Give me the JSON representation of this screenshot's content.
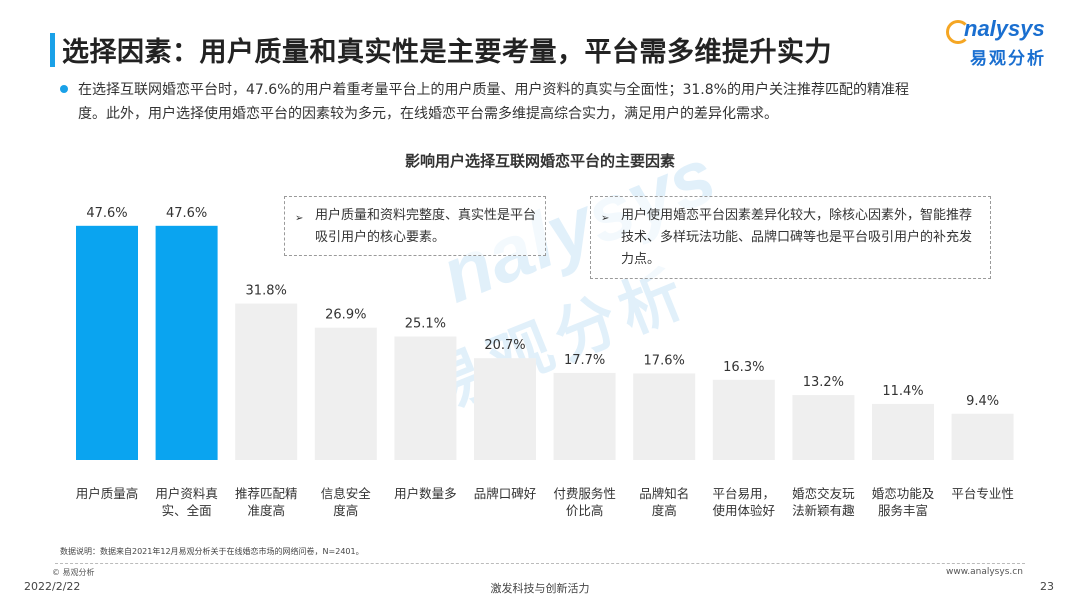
{
  "header": {
    "title": "选择因素：用户质量和真实性是主要考量，平台需多维提升实力",
    "logo_en": "nalysys",
    "logo_cn": "易观分析"
  },
  "summary": {
    "line1": "在选择互联网婚恋平台时，47.6%的用户着重考量平台上的用户质量、用户资料的真实与全面性；31.8%的用户关注推荐匹配的精准程",
    "line2": "度。此外，用户选择使用婚恋平台的因素较为多元，在线婚恋平台需多维提高综合实力，满足用户的差异化需求。"
  },
  "callouts": {
    "left": "用户质量和资料完整度、真实性是平台吸引用户的核心要素。",
    "right": "用户使用婚恋平台因素差异化较大，除核心因素外，智能推荐技术、多样玩法功能、品牌口碑等也是平台吸引用户的补充发力点。",
    "arrow": "➢"
  },
  "watermark": {
    "en": "nalysys",
    "cn": "易观分析"
  },
  "chart_data": {
    "type": "bar",
    "title": "影响用户选择互联网婚恋平台的主要因素",
    "categories": [
      [
        "用户质量高"
      ],
      [
        "用户资料真",
        "实、全面"
      ],
      [
        "推荐匹配精",
        "准度高"
      ],
      [
        "信息安全",
        "度高"
      ],
      [
        "用户数量多"
      ],
      [
        "品牌口碑好"
      ],
      [
        "付费服务性",
        "价比高"
      ],
      [
        "品牌知名",
        "度高"
      ],
      [
        "平台易用，",
        "使用体验好"
      ],
      [
        "婚恋交友玩",
        "法新颖有趣"
      ],
      [
        "婚恋功能及",
        "服务丰富"
      ],
      [
        "平台专业性"
      ]
    ],
    "values": [
      47.6,
      47.6,
      31.8,
      26.9,
      25.1,
      20.7,
      17.7,
      17.6,
      16.3,
      13.2,
      11.4,
      9.4
    ],
    "labels": [
      "47.6%",
      "47.6%",
      "31.8%",
      "26.9%",
      "25.1%",
      "20.7%",
      "17.7%",
      "17.6%",
      "16.3%",
      "13.2%",
      "11.4%",
      "9.4%"
    ],
    "highlight_count": 2,
    "highlight_color": "#0aa4f0",
    "other_color": "#efefef",
    "ylim": [
      0,
      50
    ]
  },
  "footer": {
    "note": "数据说明：数据来自2021年12月易观分析关于在线婚恋市场的网络问卷，N=2401。",
    "copyright": "© 易观分析",
    "date": "2022/2/22",
    "slogan": "激发科技与创新活力",
    "website": "www.analysys.cn",
    "page": "23"
  }
}
